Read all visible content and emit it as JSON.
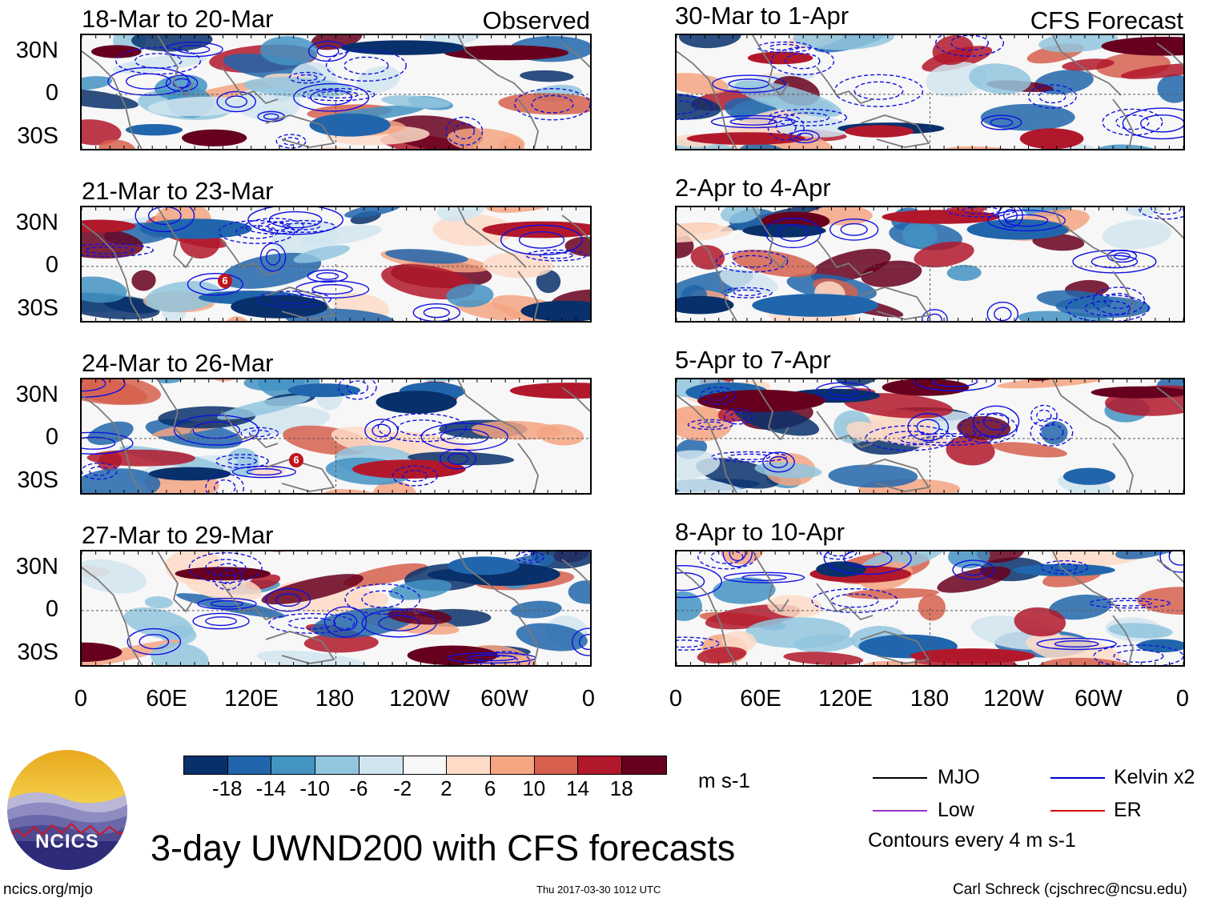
{
  "panels": {
    "observed_label": "Observed",
    "forecast_label": "CFS Forecast",
    "left": [
      {
        "title": "18-Mar to 20-Mar"
      },
      {
        "title": "21-Mar to 23-Mar"
      },
      {
        "title": "24-Mar to 26-Mar"
      },
      {
        "title": "27-Mar to 29-Mar"
      }
    ],
    "right": [
      {
        "title": "30-Mar to 1-Apr"
      },
      {
        "title": "2-Apr to 4-Apr"
      },
      {
        "title": "5-Apr to 7-Apr"
      },
      {
        "title": "8-Apr to 10-Apr"
      }
    ]
  },
  "axes": {
    "lat_labels": [
      "30N",
      "0",
      "30S"
    ],
    "lon_labels": [
      "0",
      "60E",
      "120E",
      "180",
      "120W",
      "60W",
      "0"
    ]
  },
  "colorbar": {
    "colors": [
      "#08306b",
      "#2166ac",
      "#4393c3",
      "#92c5de",
      "#d1e5f0",
      "#f7f7f7",
      "#fddbc7",
      "#f4a582",
      "#d6604d",
      "#b2182b",
      "#67001f"
    ],
    "ticks": [
      "-18",
      "-14",
      "-10",
      "-6",
      "-2",
      "2",
      "6",
      "10",
      "14",
      "18"
    ],
    "units": "m s-1"
  },
  "legend": {
    "mjo": {
      "label": "MJO",
      "color": "#000000"
    },
    "kelvin": {
      "label": "Kelvin x2",
      "color": "#0000cc"
    },
    "low": {
      "label": "Low",
      "color": "#9932cc"
    },
    "er": {
      "label": "ER",
      "color": "#dd0000"
    },
    "contour_note": "Contours every 4 m s-1"
  },
  "storm_markers": [
    "6",
    "6"
  ],
  "main_title": "3-day UWND200 with CFS forecasts",
  "logo_text": "NCICS",
  "footer": {
    "left": "ncics.org/mjo",
    "center": "Thu 2017-03-30 1012 UTC",
    "right": "Carl Schreck (cjschrec@ncsu.edu)"
  }
}
